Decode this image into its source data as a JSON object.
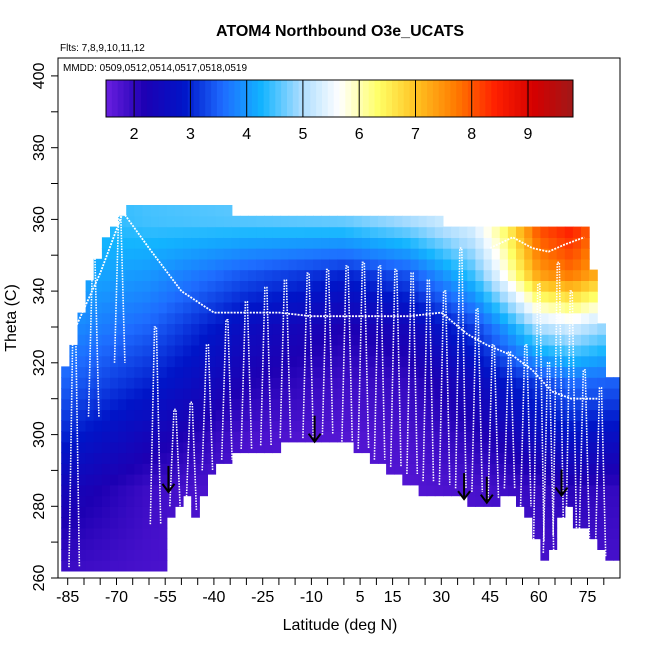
{
  "chart_data": {
    "type": "heatmap",
    "title": "ATOM4 Northbound O3e_UCATS",
    "subtitle_flights": "Flts: 7,8,9,10,11,12",
    "subtitle_dates": "MMDD: 0509,0512,0514,0517,0518,0519",
    "xlabel": "Latitude (deg N)",
    "ylabel": "Theta (C)",
    "xlim": [
      -88,
      85
    ],
    "ylim": [
      260,
      405
    ],
    "x_tick_labels": [
      "-85",
      "-70",
      "-55",
      "-40",
      "-25",
      "-10",
      "5",
      "15",
      "30",
      "45",
      "60",
      "75"
    ],
    "y_tick_labels": [
      "260",
      "280",
      "300",
      "320",
      "340",
      "360",
      "380",
      "400"
    ],
    "colorbar": {
      "range": [
        1.5,
        9.8
      ],
      "tick_labels": [
        "2",
        "3",
        "4",
        "5",
        "6",
        "7",
        "8",
        "9"
      ],
      "stops": [
        "#6a1fe0",
        "#1d00b3",
        "#0015c8",
        "#1e6cff",
        "#12b4ff",
        "#a9dcff",
        "#ffffff",
        "#ffff66",
        "#ffc020",
        "#ff7a00",
        "#ff2000",
        "#d40000",
        "#a01818"
      ]
    },
    "surface_theta": [
      [
        -85,
        262
      ],
      [
        -55,
        262
      ],
      [
        -55,
        277
      ],
      [
        -48,
        282
      ],
      [
        -45,
        274
      ],
      [
        -42,
        288
      ],
      [
        -32,
        295
      ],
      [
        -24,
        295
      ],
      [
        -10,
        299
      ],
      [
        0,
        298
      ],
      [
        14,
        290
      ],
      [
        24,
        284
      ],
      [
        36,
        282
      ],
      [
        46,
        278
      ],
      [
        50,
        286
      ],
      [
        57,
        277
      ],
      [
        63,
        263
      ],
      [
        68,
        283
      ],
      [
        71,
        273
      ],
      [
        78,
        272
      ],
      [
        82,
        264
      ]
    ],
    "top_theta": [
      [
        -85,
        320
      ],
      [
        -75,
        352
      ],
      [
        -68,
        362
      ],
      [
        -55,
        365
      ],
      [
        -40,
        363
      ],
      [
        -20,
        361
      ],
      [
        0,
        361
      ],
      [
        20,
        360
      ],
      [
        40,
        359
      ],
      [
        60,
        359
      ],
      [
        75,
        358
      ],
      [
        82,
        315
      ]
    ],
    "o3_field": [
      {
        "theta": 360,
        "lat": [
          -85,
          -60,
          -30,
          0,
          20,
          40,
          50,
          60,
          70,
          82
        ],
        "o3": [
          4.3,
          4.5,
          4.6,
          4.7,
          5.0,
          5.5,
          6.5,
          8.2,
          8.6,
          7.5
        ]
      },
      {
        "theta": 345,
        "lat": [
          -85,
          -60,
          -30,
          0,
          20,
          40,
          50,
          60,
          70,
          82
        ],
        "o3": [
          4.2,
          4.0,
          3.4,
          3.0,
          3.4,
          4.5,
          5.8,
          7.4,
          7.8,
          7.0
        ]
      },
      {
        "theta": 330,
        "lat": [
          -85,
          -60,
          -30,
          0,
          20,
          40,
          50,
          60,
          70,
          82
        ],
        "o3": [
          3.9,
          3.5,
          2.6,
          2.2,
          2.4,
          3.2,
          4.0,
          5.0,
          5.3,
          4.8
        ]
      },
      {
        "theta": 315,
        "lat": [
          -85,
          -60,
          -30,
          0,
          20,
          40,
          50,
          60,
          70,
          82
        ],
        "o3": [
          3.5,
          3.0,
          2.2,
          1.9,
          2.0,
          2.5,
          2.9,
          3.2,
          3.6,
          3.5
        ]
      },
      {
        "theta": 300,
        "lat": [
          -85,
          -60,
          -30,
          0,
          20,
          40,
          50,
          60,
          70,
          82
        ],
        "o3": [
          3.0,
          2.4,
          1.8,
          1.7,
          1.8,
          2.1,
          2.3,
          2.6,
          2.8,
          2.7
        ]
      },
      {
        "theta": 285,
        "lat": [
          -85,
          -60,
          -30,
          0,
          20,
          40,
          50,
          60,
          70,
          82
        ],
        "o3": [
          2.4,
          1.9,
          1.7,
          1.7,
          1.7,
          1.8,
          1.9,
          2.0,
          2.1,
          2.0
        ]
      },
      {
        "theta": 262,
        "lat": [
          -85,
          -60,
          -30,
          0,
          20,
          40,
          50,
          60,
          70,
          82
        ],
        "o3": [
          1.9,
          1.8,
          1.7,
          1.7,
          1.7,
          1.7,
          1.7,
          1.8,
          1.8,
          1.8
        ]
      }
    ],
    "flight_profiles": [
      {
        "lat": -83,
        "top": 338,
        "bottom": 263
      },
      {
        "lat": -77,
        "top": 352,
        "bottom": 305
      },
      {
        "lat": -69,
        "top": 362,
        "bottom": 320
      },
      {
        "lat": -58,
        "top": 330,
        "bottom": 275
      },
      {
        "lat": -52,
        "top": 307,
        "bottom": 280
      },
      {
        "lat": -47,
        "top": 309,
        "bottom": 279
      },
      {
        "lat": -42,
        "top": 325,
        "bottom": 290
      },
      {
        "lat": -36,
        "top": 332,
        "bottom": 293
      },
      {
        "lat": -30,
        "top": 337,
        "bottom": 296
      },
      {
        "lat": -24,
        "top": 341,
        "bottom": 297
      },
      {
        "lat": -18,
        "top": 343,
        "bottom": 299
      },
      {
        "lat": -11,
        "top": 345,
        "bottom": 299
      },
      {
        "lat": -5,
        "top": 346,
        "bottom": 300
      },
      {
        "lat": 1,
        "top": 347,
        "bottom": 298
      },
      {
        "lat": 6,
        "top": 348,
        "bottom": 296
      },
      {
        "lat": 11,
        "top": 347,
        "bottom": 293
      },
      {
        "lat": 16,
        "top": 346,
        "bottom": 291
      },
      {
        "lat": 21,
        "top": 345,
        "bottom": 289
      },
      {
        "lat": 26,
        "top": 343,
        "bottom": 287
      },
      {
        "lat": 31,
        "top": 340,
        "bottom": 286
      },
      {
        "lat": 36,
        "top": 352,
        "bottom": 285
      },
      {
        "lat": 41,
        "top": 335,
        "bottom": 284
      },
      {
        "lat": 46,
        "top": 325,
        "bottom": 282
      },
      {
        "lat": 51,
        "top": 323,
        "bottom": 285
      },
      {
        "lat": 56,
        "top": 325,
        "bottom": 280
      },
      {
        "lat": 60,
        "top": 342,
        "bottom": 270
      },
      {
        "lat": 63,
        "top": 320,
        "bottom": 267
      },
      {
        "lat": 66,
        "top": 348,
        "bottom": 272
      },
      {
        "lat": 70,
        "top": 340,
        "bottom": 273
      },
      {
        "lat": 74,
        "top": 318,
        "bottom": 270
      },
      {
        "lat": 79,
        "top": 313,
        "bottom": 266
      }
    ],
    "tropopause_line": [
      [
        -85,
        325
      ],
      [
        -75,
        345
      ],
      [
        -68,
        362
      ],
      [
        -60,
        352
      ],
      [
        -50,
        340
      ],
      [
        -40,
        334
      ],
      [
        -30,
        334
      ],
      [
        -20,
        334
      ],
      [
        -10,
        333
      ],
      [
        0,
        333
      ],
      [
        10,
        333
      ],
      [
        20,
        333
      ],
      [
        30,
        334
      ],
      [
        38,
        328
      ],
      [
        44,
        325
      ],
      [
        52,
        322
      ],
      [
        58,
        318
      ],
      [
        64,
        312
      ],
      [
        70,
        310
      ],
      [
        78,
        310
      ]
    ],
    "polar_tropopause_line": [
      [
        45,
        352
      ],
      [
        52,
        355
      ],
      [
        58,
        352
      ],
      [
        63,
        351
      ],
      [
        68,
        353
      ],
      [
        74,
        355
      ]
    ],
    "arrows": [
      -54,
      -9,
      37,
      44,
      67
    ],
    "arrow_tip_theta": [
      284,
      298,
      282,
      281,
      283
    ]
  }
}
